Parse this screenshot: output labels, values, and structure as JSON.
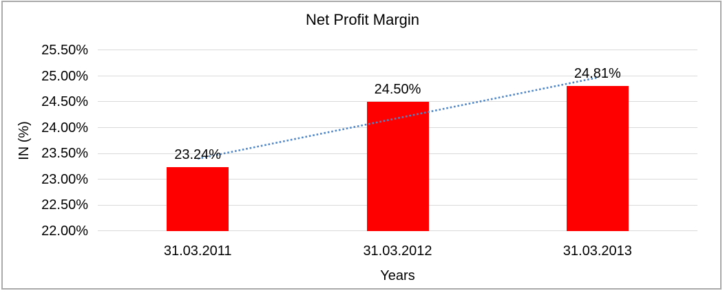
{
  "frame": {
    "background_color": "#ffffff",
    "border_color": "#a9a9a9"
  },
  "chart_data": {
    "type": "bar",
    "title": "Net Profit Margin",
    "xlabel": "Years",
    "ylabel": "IN (%)",
    "categories": [
      "31.03.2011",
      "31.03.2012",
      "31.03.2013"
    ],
    "values": [
      23.24,
      24.5,
      24.81
    ],
    "data_labels": [
      "23.24%",
      "24.50%",
      "24.81%"
    ],
    "ylim": [
      22.0,
      25.5
    ],
    "y_ticks": [
      {
        "value": 25.5,
        "label": "25.50%"
      },
      {
        "value": 25.0,
        "label": "25.00%"
      },
      {
        "value": 24.5,
        "label": "24.50%"
      },
      {
        "value": 24.0,
        "label": "24.00%"
      },
      {
        "value": 23.5,
        "label": "23.50%"
      },
      {
        "value": 23.0,
        "label": "23.00%"
      },
      {
        "value": 22.5,
        "label": "22.50%"
      },
      {
        "value": 22.0,
        "label": "22.00%"
      }
    ],
    "grid": true,
    "legend": "none",
    "bar_color": "#ff0000",
    "gridline_color": "#d9d9d9",
    "text_color": "#000000",
    "trendline": {
      "type": "linear",
      "style": "dotted",
      "color": "#4e86c8",
      "start_value": 23.4,
      "end_value": 24.97
    }
  }
}
